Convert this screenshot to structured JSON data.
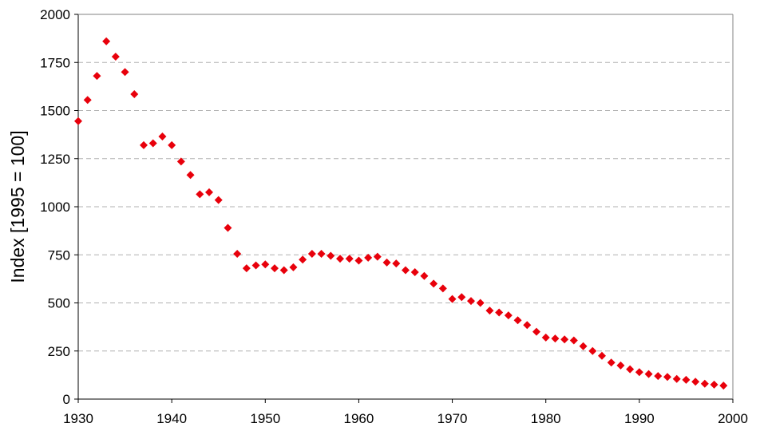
{
  "chart_data": {
    "type": "scatter",
    "title": "",
    "xlabel": "",
    "ylabel": "Index [1995 = 100]",
    "xlim": [
      1930,
      2000
    ],
    "ylim": [
      0,
      2000
    ],
    "x_ticks": [
      "1930",
      "1940",
      "1950",
      "1960",
      "1970",
      "1980",
      "1990",
      "2000"
    ],
    "y_ticks": [
      "0",
      "250",
      "500",
      "750",
      "1000",
      "1250",
      "1500",
      "1750",
      "2000"
    ],
    "grid": "horizontal dashed",
    "marker": "diamond",
    "color": "#e8000b",
    "series": [
      {
        "x": [
          1930,
          1931,
          1932,
          1933,
          1934,
          1935,
          1936,
          1937,
          1938,
          1939,
          1940,
          1941,
          1942,
          1943,
          1944,
          1945,
          1946,
          1947,
          1948,
          1949,
          1950,
          1951,
          1952,
          1953,
          1954,
          1955,
          1956,
          1957,
          1958,
          1959,
          1960,
          1961,
          1962,
          1963,
          1964,
          1965,
          1966,
          1967,
          1968,
          1969,
          1970,
          1971,
          1972,
          1973,
          1974,
          1975,
          1976,
          1977,
          1978,
          1979,
          1980,
          1981,
          1982,
          1983,
          1984,
          1985,
          1986,
          1987,
          1988,
          1989,
          1990,
          1991,
          1992,
          1993,
          1994,
          1995,
          1996,
          1997,
          1998,
          1999
        ],
        "y": [
          1445,
          1555,
          1680,
          1860,
          1780,
          1700,
          1585,
          1320,
          1330,
          1365,
          1320,
          1235,
          1165,
          1065,
          1075,
          1035,
          890,
          755,
          680,
          695,
          700,
          680,
          670,
          685,
          725,
          755,
          755,
          745,
          730,
          730,
          720,
          735,
          740,
          710,
          705,
          670,
          660,
          640,
          600,
          575,
          520,
          530,
          510,
          500,
          460,
          450,
          435,
          410,
          385,
          350,
          320,
          315,
          310,
          305,
          275,
          250,
          225,
          190,
          175,
          155,
          140,
          130,
          120,
          115,
          105,
          100,
          90,
          80,
          75,
          70
        ]
      }
    ]
  }
}
